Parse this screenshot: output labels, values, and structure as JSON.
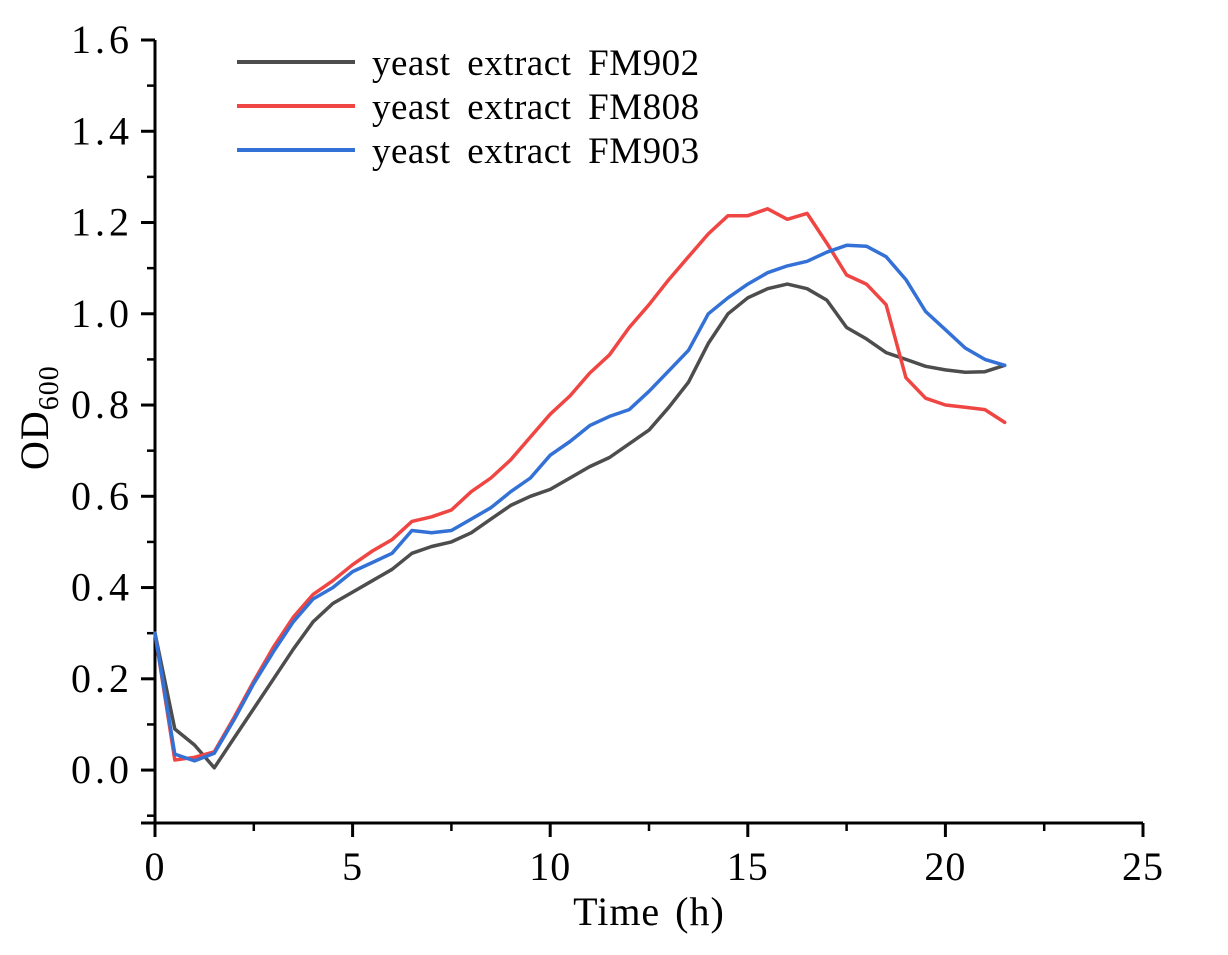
{
  "figure": {
    "background": "#ffffff",
    "axis_color": "#000000"
  },
  "chart_data": {
    "type": "line",
    "title": "",
    "xlabel": "Time (h)",
    "ylabel": "OD",
    "ylabel_subscript": "600",
    "xlim": [
      0,
      25
    ],
    "ylim": [
      -0.116,
      1.6
    ],
    "grid": false,
    "legend_position": "upper-left-inside",
    "x_major_ticks": [
      0,
      5,
      10,
      15,
      20,
      25
    ],
    "x_tick_labels": [
      "0",
      "5",
      "10",
      "15",
      "20",
      "25"
    ],
    "x_minor_ticks": [
      2.5,
      7.5,
      12.5,
      17.5,
      22.5
    ],
    "y_major_ticks": [
      0,
      0.2,
      0.4,
      0.6,
      0.8,
      1.0,
      1.2,
      1.4,
      1.6
    ],
    "y_tick_labels": [
      "0.0",
      "0.2",
      "0.4",
      "0.6",
      "0.8",
      "1.0",
      "1.2",
      "1.4",
      "1.6"
    ],
    "y_minor_step": 0.1,
    "x": [
      0,
      0.5,
      1,
      1.5,
      2,
      2.5,
      3,
      3.5,
      4,
      4.5,
      5,
      5.5,
      6,
      6.5,
      7,
      7.5,
      8,
      8.5,
      9,
      9.5,
      10,
      10.5,
      11,
      11.5,
      12,
      12.5,
      13,
      13.5,
      14,
      14.5,
      15,
      15.5,
      16,
      16.5,
      17,
      17.5,
      18,
      18.5,
      19,
      19.5,
      20,
      20.5,
      21,
      21.5
    ],
    "series": [
      {
        "name": "yeast extract FM902",
        "color": "#4d4d4d",
        "values": [
          0.3,
          0.09,
          0.055,
          0.005,
          0.07,
          0.135,
          0.2,
          0.265,
          0.325,
          0.365,
          0.39,
          0.415,
          0.44,
          0.475,
          0.49,
          0.5,
          0.52,
          0.55,
          0.58,
          0.6,
          0.615,
          0.64,
          0.665,
          0.685,
          0.715,
          0.745,
          0.795,
          0.85,
          0.935,
          1.0,
          1.035,
          1.055,
          1.065,
          1.055,
          1.03,
          0.97,
          0.945,
          0.915,
          0.9,
          0.885,
          0.877,
          0.872,
          0.873,
          0.887
        ]
      },
      {
        "name": "yeast extract FM808",
        "color": "#f04643",
        "values": [
          0.3,
          0.022,
          0.028,
          0.04,
          0.115,
          0.195,
          0.27,
          0.335,
          0.385,
          0.415,
          0.45,
          0.48,
          0.505,
          0.545,
          0.555,
          0.57,
          0.61,
          0.64,
          0.68,
          0.73,
          0.78,
          0.82,
          0.87,
          0.91,
          0.97,
          1.02,
          1.075,
          1.125,
          1.175,
          1.215,
          1.215,
          1.23,
          1.207,
          1.22,
          1.155,
          1.085,
          1.065,
          1.02,
          0.86,
          0.815,
          0.8,
          0.795,
          0.79,
          0.762
        ]
      },
      {
        "name": "yeast extract FM903",
        "color": "#3371d6",
        "values": [
          0.3,
          0.035,
          0.02,
          0.037,
          0.11,
          0.19,
          0.26,
          0.325,
          0.375,
          0.4,
          0.435,
          0.455,
          0.475,
          0.525,
          0.52,
          0.525,
          0.55,
          0.575,
          0.61,
          0.64,
          0.69,
          0.72,
          0.755,
          0.775,
          0.79,
          0.83,
          0.875,
          0.92,
          1.0,
          1.035,
          1.065,
          1.09,
          1.105,
          1.115,
          1.135,
          1.15,
          1.148,
          1.125,
          1.075,
          1.005,
          0.965,
          0.925,
          0.9,
          0.887
        ]
      }
    ]
  }
}
